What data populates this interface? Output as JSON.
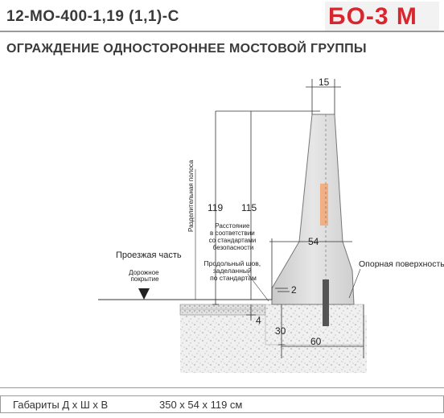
{
  "header": {
    "code": "12-МО-400-1,19 (1,1)-С",
    "model": "БО-3 М"
  },
  "title": "ОГРАЖДЕНИЕ ОДНОСТОРОННЕЕ МОСТОВОЙ ГРУППЫ",
  "drawing": {
    "dim_top_width": "15",
    "dim_height_total": "119",
    "dim_height_inner": "115",
    "dim_base_width": "54",
    "dim_step": "2",
    "dim_road_depth": "4",
    "dim_embed_depth": "30",
    "dim_footing_width": "60",
    "label_dividing_strip": "Разделительная полоса",
    "label_distance": [
      "Расстояние",
      "в соответствии",
      "со стандартами",
      "безопасности"
    ],
    "label_carriageway": "Проезжая часть",
    "label_road_surface": [
      "Дорожное",
      "покрытие"
    ],
    "label_seam": [
      "Продольный шов,",
      "заделанный",
      "по стандартам"
    ],
    "label_support_surface": "Опорная поверхность"
  },
  "footer": {
    "label": "Габариты  Д х Ш х В",
    "value": "350 х 54 х 119 см"
  },
  "colors": {
    "brand_red": "#d8262e",
    "barrier_grey": "#d9d9d9",
    "stripe_orange": "#f5a26b"
  }
}
